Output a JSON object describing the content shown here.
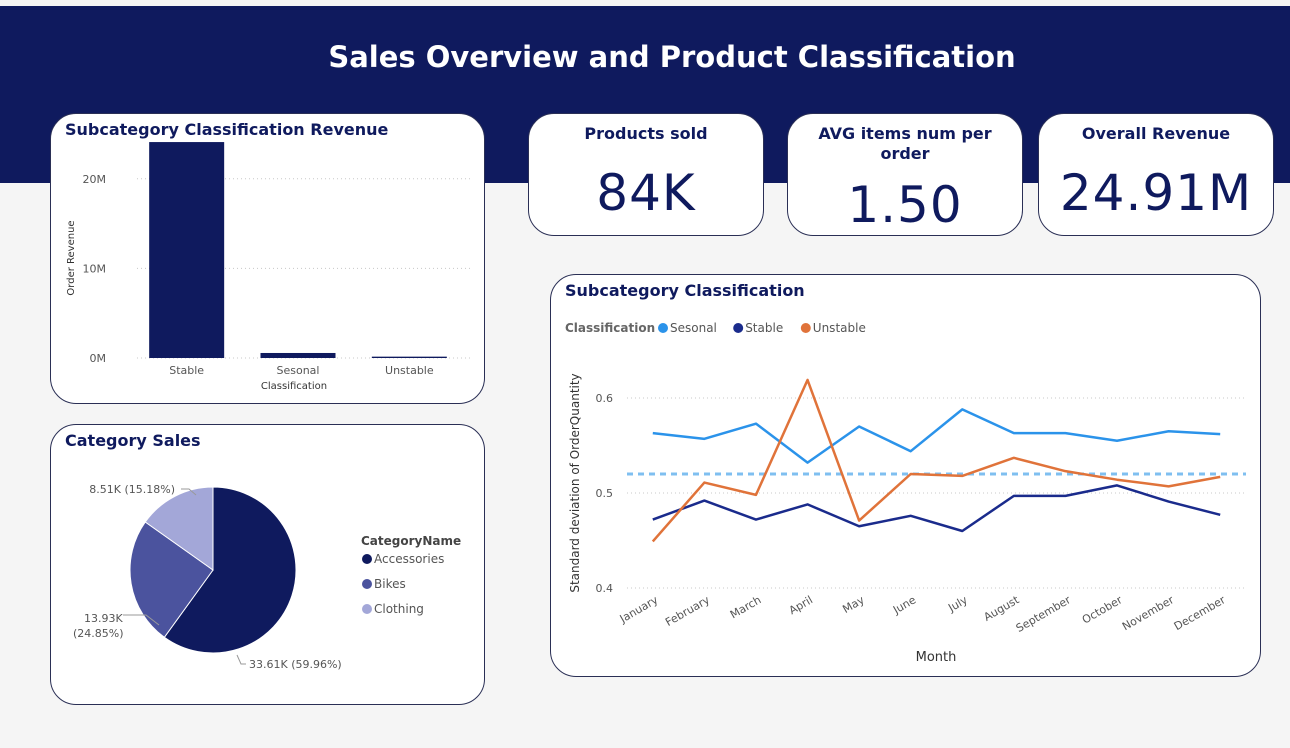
{
  "header": {
    "title": "Sales Overview and Product Classification"
  },
  "kpis": [
    {
      "label": "Products sold",
      "value": "84K"
    },
    {
      "label": "AVG items num per order",
      "value": "1.50"
    },
    {
      "label": "Overall Revenue",
      "value": "24.91M"
    }
  ],
  "colors": {
    "banner": "#0f1a5e",
    "stable": "#1a2b8c",
    "sesonal": "#2b93ea",
    "unstable": "#e0733a",
    "bar": "#0f1a5e"
  },
  "chart_data": [
    {
      "type": "bar",
      "title": "Subcategory Classification Revenue",
      "xlabel": "Classification",
      "ylabel": "Order Revenue",
      "categories": [
        "Stable",
        "Sesonal",
        "Unstable"
      ],
      "values": [
        24100000,
        560000,
        150000
      ],
      "ylim": [
        0,
        25000000
      ],
      "yticks": [
        {
          "value": 0,
          "label": "0M"
        },
        {
          "value": 10000000,
          "label": "10M"
        },
        {
          "value": 20000000,
          "label": "20M"
        }
      ],
      "grid": true
    },
    {
      "type": "pie",
      "title": "Category Sales",
      "legend_title": "CategoryName",
      "legend_position": "right",
      "slices": [
        {
          "name": "Accessories",
          "value": 33610,
          "label": "33.61K (59.96%)",
          "color": "#0f1a5e"
        },
        {
          "name": "Bikes",
          "value": 13930,
          "label_lines": [
            "13.93K",
            "(24.85%)"
          ],
          "color": "#4b539e"
        },
        {
          "name": "Clothing",
          "value": 8510,
          "label": "8.51K (15.18%)",
          "color": "#a3a7d8"
        }
      ]
    },
    {
      "type": "line",
      "title": "Subcategory Classification",
      "xlabel": "Month",
      "ylabel": "Standard deviation of OrderQuantity",
      "legend_title": "Classification",
      "legend_position": "top-left",
      "categories": [
        "January",
        "February",
        "March",
        "April",
        "May",
        "June",
        "July",
        "August",
        "September",
        "October",
        "November",
        "December"
      ],
      "ylim": [
        0.4,
        0.6
      ],
      "yticks": [
        0.4,
        0.5,
        0.6
      ],
      "reference_line": 0.52,
      "series": [
        {
          "name": "Sesonal",
          "color": "#2b93ea",
          "values": [
            0.563,
            0.557,
            0.573,
            0.532,
            0.57,
            0.544,
            0.588,
            0.563,
            0.563,
            0.555,
            0.565,
            0.562
          ]
        },
        {
          "name": "Stable",
          "color": "#1a2b8c",
          "values": [
            0.472,
            0.492,
            0.472,
            0.488,
            0.465,
            0.476,
            0.46,
            0.497,
            0.497,
            0.508,
            0.491,
            0.477
          ]
        },
        {
          "name": "Unstable",
          "color": "#e0733a",
          "values": [
            0.449,
            0.511,
            0.498,
            0.619,
            0.471,
            0.52,
            0.518,
            0.537,
            0.523,
            0.514,
            0.507,
            0.517
          ]
        }
      ]
    }
  ]
}
